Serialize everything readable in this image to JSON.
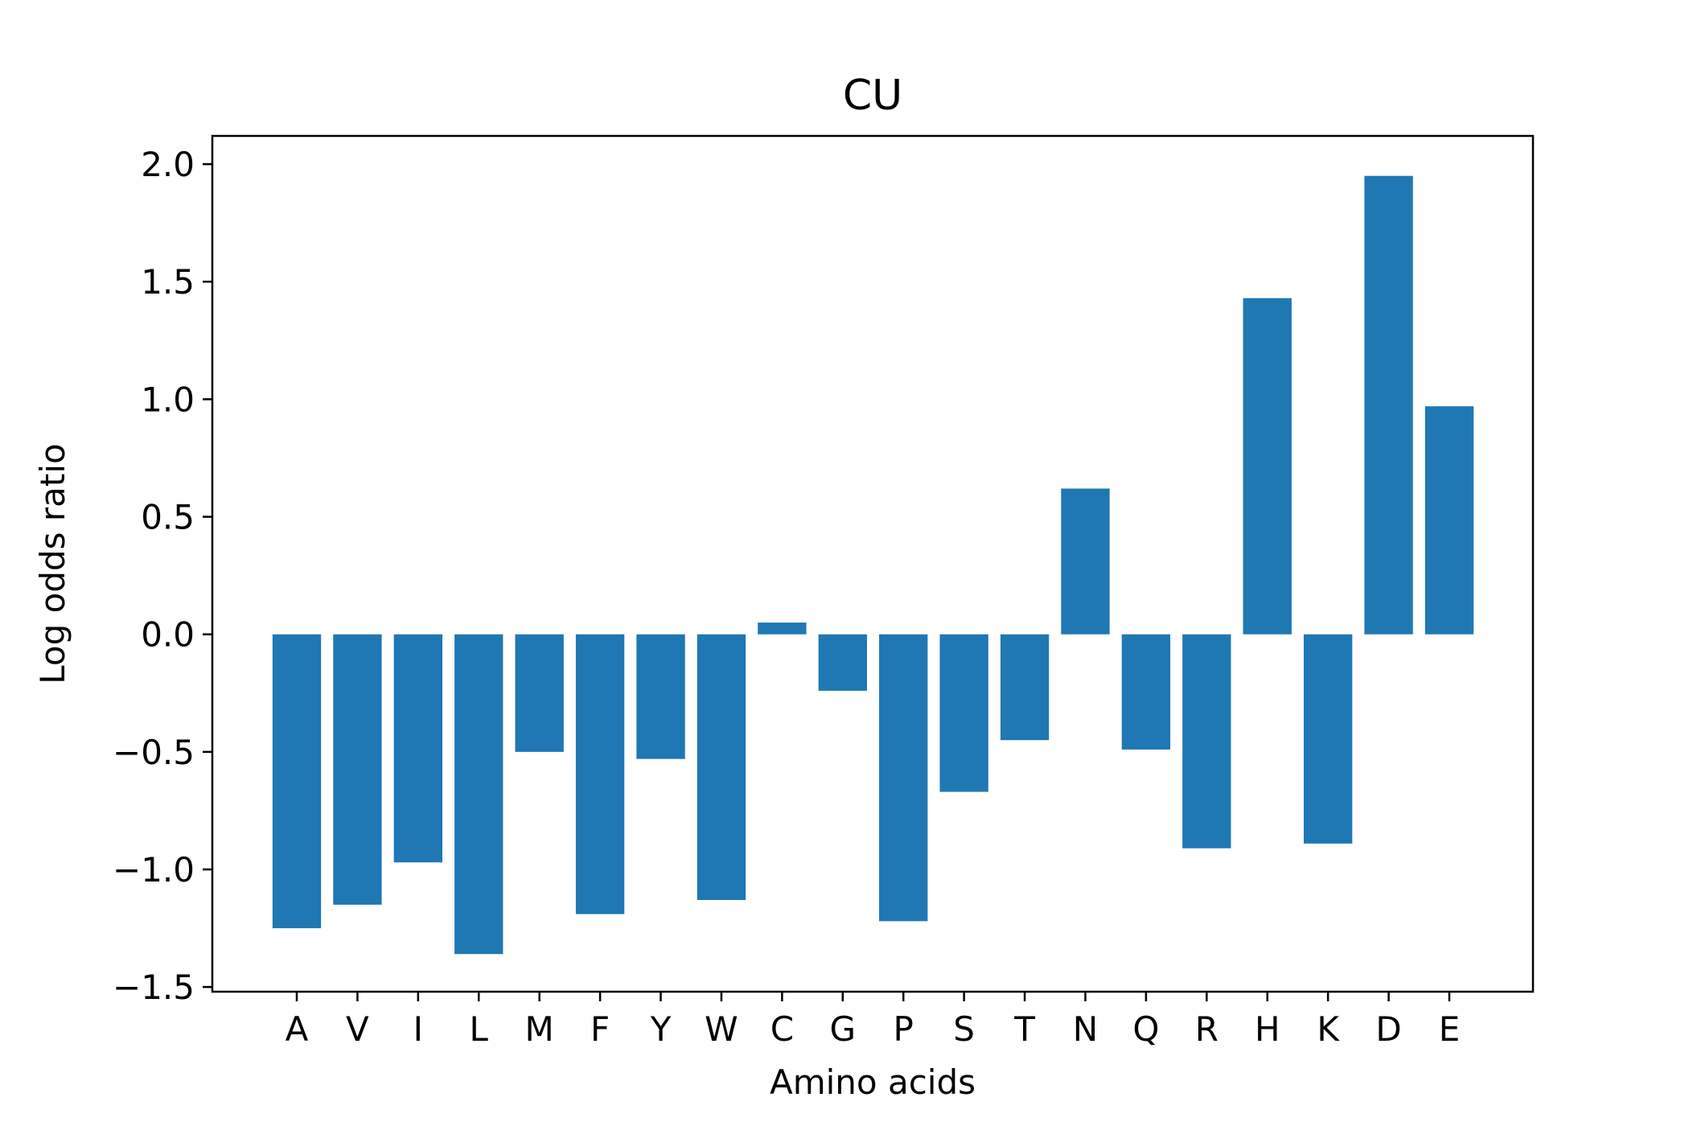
{
  "chart_data": {
    "type": "bar",
    "title": "CU",
    "xlabel": "Amino acids",
    "ylabel": "Log odds ratio",
    "categories": [
      "A",
      "V",
      "I",
      "L",
      "M",
      "F",
      "Y",
      "W",
      "C",
      "G",
      "P",
      "S",
      "T",
      "N",
      "Q",
      "R",
      "H",
      "K",
      "D",
      "E"
    ],
    "values": [
      -1.25,
      -1.15,
      -0.97,
      -1.36,
      -0.5,
      -1.19,
      -0.53,
      -1.13,
      0.05,
      -0.24,
      -1.22,
      -0.67,
      -0.45,
      0.62,
      -0.49,
      -0.91,
      1.43,
      -0.89,
      1.95,
      0.97
    ],
    "ylim": [
      -1.52,
      2.12
    ],
    "yticks": [
      -1.5,
      -1.0,
      -0.5,
      0.0,
      0.5,
      1.0,
      1.5,
      2.0
    ],
    "ytick_labels": [
      "−1.5",
      "−1.0",
      "−0.5",
      "0.0",
      "0.5",
      "1.0",
      "1.5",
      "2.0"
    ],
    "bar_color": "#1f77b4",
    "grid": false,
    "legend": "none"
  }
}
